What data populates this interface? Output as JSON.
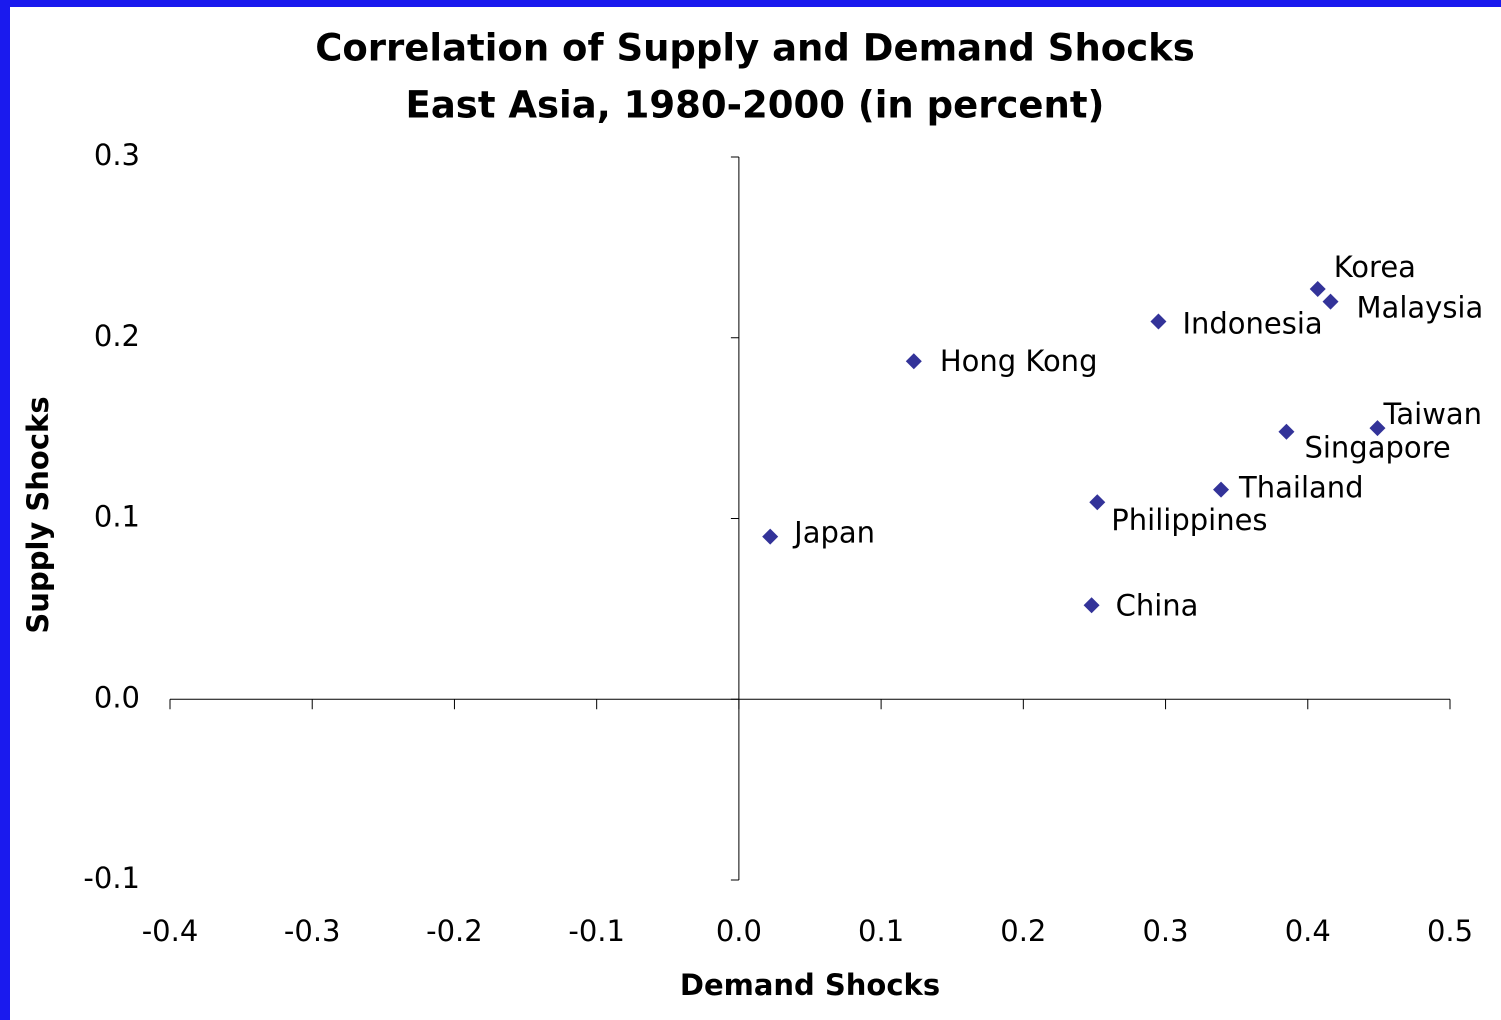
{
  "chart_data": {
    "type": "scatter",
    "title": "Correlation of Supply and Demand Shocks",
    "subtitle": "East Asia, 1980-2000 (in percent)",
    "x_label": "Demand Shocks",
    "y_label": "Supply Shocks",
    "x": [
      0.022,
      0.123,
      0.295,
      0.407,
      0.416,
      0.449,
      0.385,
      0.339,
      0.252,
      0.248
    ],
    "series": [
      {
        "color": "#333399",
        "values": [
          0.09,
          0.187,
          0.209,
          0.227,
          0.22,
          0.15,
          0.148,
          0.116,
          0.109,
          0.052
        ]
      }
    ],
    "point_labels": [
      "Japan",
      "Hong Kong",
      "Indonesia",
      "Korea",
      "Malaysia",
      "Taiwan",
      "Singapore",
      "Thailand",
      "Philippines",
      "China"
    ],
    "xlim": [
      -0.4,
      0.5
    ],
    "xticks": [
      -0.4,
      -0.3,
      -0.2,
      -0.1,
      {
        "value": 0,
        "label": "0.0"
      },
      0.1,
      0.2,
      0.3,
      0.4,
      0.5
    ],
    "ylim": [
      -0.1,
      0.3
    ],
    "yticks": [
      -0.1,
      {
        "value": 0,
        "label": "0.0"
      },
      0.1,
      0.2,
      0.3
    ],
    "grid": false
  }
}
